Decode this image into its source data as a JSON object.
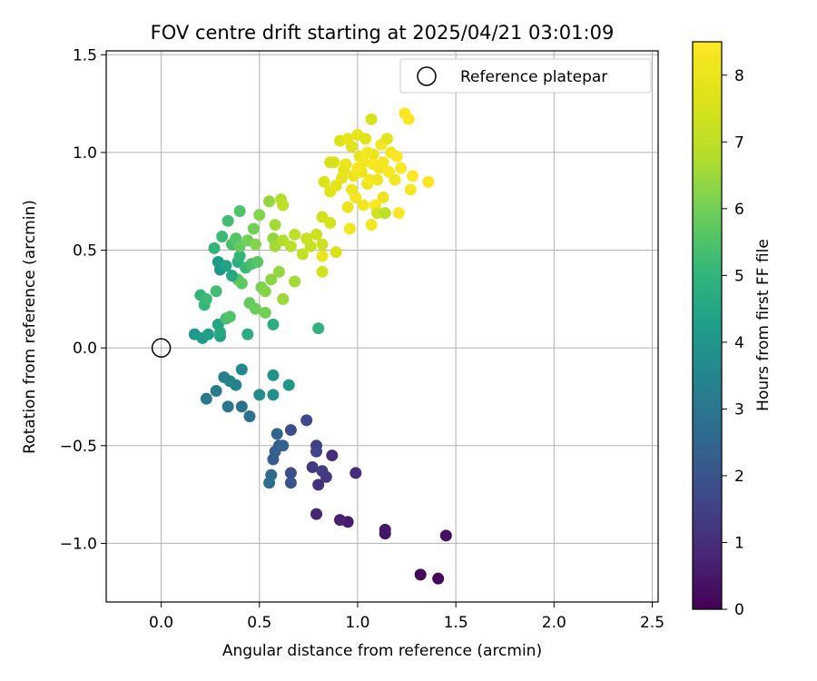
{
  "chart_data": {
    "type": "scatter",
    "title": "FOV centre drift starting at 2025/04/21 03:01:09",
    "xlabel": "Angular distance from reference (arcmin)",
    "ylabel": "Rotation from reference (arcmin)",
    "xlim": [
      -0.28,
      2.53
    ],
    "ylim": [
      -1.3,
      1.52
    ],
    "xticks": [
      0.0,
      0.5,
      1.0,
      1.5,
      2.0,
      2.5
    ],
    "xtick_labels": [
      "0.0",
      "0.5",
      "1.0",
      "1.5",
      "2.0",
      "2.5"
    ],
    "yticks": [
      -1.0,
      -0.5,
      0.0,
      0.5,
      1.0,
      1.5
    ],
    "ytick_labels": [
      "−1.0",
      "−0.5",
      "0.0",
      "0.5",
      "1.0",
      "1.5"
    ],
    "grid": true,
    "legend": {
      "placement": "top-right",
      "entries": [
        "Reference platepar"
      ]
    },
    "reference_point": {
      "x": 0.0,
      "y": 0.0
    },
    "colorbar": {
      "label": "Hours from first FF file",
      "colormap": "viridis",
      "range": [
        0,
        8.5
      ],
      "ticks": [
        0,
        1,
        2,
        3,
        4,
        5,
        6,
        7,
        8
      ],
      "tick_labels": [
        "0",
        "1",
        "2",
        "3",
        "4",
        "5",
        "6",
        "7",
        "8"
      ]
    },
    "points": [
      [
        1.41,
        -1.18,
        0.1
      ],
      [
        1.32,
        -1.16,
        0.2
      ],
      [
        1.45,
        -0.96,
        0.3
      ],
      [
        1.14,
        -0.95,
        0.4
      ],
      [
        1.14,
        -0.93,
        0.5
      ],
      [
        0.95,
        -0.89,
        0.6
      ],
      [
        0.91,
        -0.88,
        0.7
      ],
      [
        0.79,
        -0.85,
        0.8
      ],
      [
        0.99,
        -0.64,
        0.9
      ],
      [
        0.87,
        -0.55,
        1.0
      ],
      [
        0.8,
        -0.7,
        1.1
      ],
      [
        0.84,
        -0.66,
        1.2
      ],
      [
        0.77,
        -0.61,
        1.3
      ],
      [
        0.82,
        -0.63,
        1.4
      ],
      [
        0.79,
        -0.5,
        1.5
      ],
      [
        0.79,
        -0.53,
        1.6
      ],
      [
        0.74,
        -0.37,
        1.7
      ],
      [
        0.66,
        -0.42,
        1.8
      ],
      [
        0.66,
        -0.64,
        1.9
      ],
      [
        0.66,
        -0.69,
        2.0
      ],
      [
        0.6,
        -0.5,
        2.1
      ],
      [
        0.57,
        -0.57,
        2.2
      ],
      [
        0.58,
        -0.53,
        2.3
      ],
      [
        0.62,
        -0.5,
        2.4
      ],
      [
        0.59,
        -0.44,
        2.5
      ],
      [
        0.56,
        -0.65,
        2.6
      ],
      [
        0.55,
        -0.69,
        2.7
      ],
      [
        0.45,
        -0.35,
        2.8
      ],
      [
        0.41,
        -0.3,
        2.9
      ],
      [
        0.34,
        -0.3,
        3.0
      ],
      [
        0.23,
        -0.26,
        3.1
      ],
      [
        0.28,
        -0.22,
        3.2
      ],
      [
        0.32,
        -0.15,
        3.3
      ],
      [
        0.35,
        -0.17,
        3.4
      ],
      [
        0.38,
        -0.19,
        3.5
      ],
      [
        0.41,
        -0.11,
        3.6
      ],
      [
        0.5,
        -0.24,
        3.7
      ],
      [
        0.57,
        -0.24,
        3.8
      ],
      [
        0.57,
        -0.14,
        3.9
      ],
      [
        0.65,
        -0.19,
        4.0
      ],
      [
        0.17,
        0.07,
        4.1
      ],
      [
        0.21,
        0.05,
        4.2
      ],
      [
        0.24,
        0.07,
        4.3
      ],
      [
        0.3,
        0.06,
        4.4
      ],
      [
        0.29,
        0.12,
        4.5
      ],
      [
        0.3,
        0.08,
        4.6
      ],
      [
        0.44,
        0.07,
        4.7
      ],
      [
        0.57,
        0.12,
        4.8
      ],
      [
        0.8,
        0.1,
        4.9
      ],
      [
        0.2,
        0.27,
        5.0
      ],
      [
        0.22,
        0.22,
        5.1
      ],
      [
        0.23,
        0.25,
        5.2
      ],
      [
        0.28,
        0.29,
        5.3
      ],
      [
        0.33,
        0.15,
        5.4
      ],
      [
        0.35,
        0.16,
        5.5
      ],
      [
        0.39,
        0.35,
        5.6
      ],
      [
        0.41,
        0.33,
        5.7
      ],
      [
        0.45,
        0.23,
        5.8
      ],
      [
        0.48,
        0.2,
        5.9
      ],
      [
        0.53,
        0.18,
        6.0
      ],
      [
        0.51,
        0.31,
        6.1
      ],
      [
        0.53,
        0.29,
        6.2
      ],
      [
        0.56,
        0.35,
        6.3
      ],
      [
        0.6,
        0.39,
        6.4
      ],
      [
        0.62,
        0.25,
        6.5
      ],
      [
        0.68,
        0.34,
        6.6
      ],
      [
        0.3,
        0.4,
        4.0
      ],
      [
        0.29,
        0.44,
        4.2
      ],
      [
        0.33,
        0.42,
        4.4
      ],
      [
        0.36,
        0.37,
        4.6
      ],
      [
        0.39,
        0.44,
        4.8
      ],
      [
        0.4,
        0.47,
        5.0
      ],
      [
        0.43,
        0.41,
        5.2
      ],
      [
        0.46,
        0.43,
        5.4
      ],
      [
        0.49,
        0.44,
        5.6
      ],
      [
        0.27,
        0.51,
        5.0
      ],
      [
        0.31,
        0.57,
        5.2
      ],
      [
        0.36,
        0.53,
        5.4
      ],
      [
        0.38,
        0.56,
        5.6
      ],
      [
        0.4,
        0.52,
        5.8
      ],
      [
        0.44,
        0.55,
        6.0
      ],
      [
        0.48,
        0.53,
        6.2
      ],
      [
        0.57,
        0.56,
        6.4
      ],
      [
        0.58,
        0.52,
        6.6
      ],
      [
        0.62,
        0.55,
        6.8
      ],
      [
        0.34,
        0.65,
        5.3
      ],
      [
        0.4,
        0.7,
        5.5
      ],
      [
        0.47,
        0.61,
        6.0
      ],
      [
        0.5,
        0.68,
        6.2
      ],
      [
        0.55,
        0.75,
        6.4
      ],
      [
        0.58,
        0.63,
        6.6
      ],
      [
        0.61,
        0.76,
        6.8
      ],
      [
        0.62,
        0.73,
        7.0
      ],
      [
        0.66,
        0.52,
        6.9
      ],
      [
        0.68,
        0.58,
        7.0
      ],
      [
        0.72,
        0.48,
        7.1
      ],
      [
        0.74,
        0.56,
        7.2
      ],
      [
        0.76,
        0.52,
        7.2
      ],
      [
        0.79,
        0.58,
        7.3
      ],
      [
        0.82,
        0.53,
        7.3
      ],
      [
        0.82,
        0.39,
        7.4
      ],
      [
        0.82,
        0.67,
        7.4
      ],
      [
        0.86,
        0.64,
        7.5
      ],
      [
        0.89,
        0.49,
        7.5
      ],
      [
        0.82,
        0.47,
        8.0
      ],
      [
        0.83,
        0.85,
        7.6
      ],
      [
        0.86,
        0.8,
        7.7
      ],
      [
        0.88,
        0.95,
        7.7
      ],
      [
        0.89,
        0.83,
        7.8
      ],
      [
        0.91,
        1.06,
        7.6
      ],
      [
        0.93,
        0.91,
        7.8
      ],
      [
        0.94,
        0.94,
        8.0
      ],
      [
        0.95,
        0.72,
        8.1
      ],
      [
        0.95,
        1.07,
        7.9
      ],
      [
        0.96,
        0.61,
        8.2
      ],
      [
        0.97,
        1.03,
        7.8
      ],
      [
        0.98,
        0.88,
        8.0
      ],
      [
        0.99,
        0.77,
        8.2
      ],
      [
        1.0,
        1.09,
        7.9
      ],
      [
        1.01,
        0.98,
        8.0
      ],
      [
        1.02,
        0.9,
        8.1
      ],
      [
        1.03,
        0.73,
        8.2
      ],
      [
        1.04,
        1.07,
        7.7
      ],
      [
        1.05,
        0.84,
        8.1
      ],
      [
        1.06,
        0.86,
        8.3
      ],
      [
        1.07,
        0.63,
        8.3
      ],
      [
        1.07,
        1.17,
        7.5
      ],
      [
        1.08,
        0.99,
        8.0
      ],
      [
        1.09,
        0.73,
        8.4
      ],
      [
        1.1,
        0.69,
        7.4
      ],
      [
        1.11,
        0.92,
        8.2
      ],
      [
        1.12,
        1.04,
        8.3
      ],
      [
        1.13,
        0.77,
        8.1
      ],
      [
        1.14,
        0.69,
        7.0
      ],
      [
        1.15,
        1.07,
        7.8
      ],
      [
        1.16,
        0.9,
        8.4
      ],
      [
        1.17,
        1.0,
        8.3
      ],
      [
        1.19,
        0.86,
        8.2
      ],
      [
        1.2,
        0.98,
        8.4
      ],
      [
        1.21,
        0.69,
        8.5
      ],
      [
        1.22,
        0.92,
        8.4
      ],
      [
        1.24,
        1.2,
        8.5
      ],
      [
        1.26,
        1.17,
        8.5
      ],
      [
        1.27,
        0.81,
        8.3
      ],
      [
        1.28,
        0.88,
        8.5
      ],
      [
        1.36,
        0.85,
        8.4
      ],
      [
        0.86,
        0.95,
        7.5
      ],
      [
        0.92,
        0.87,
        7.9
      ],
      [
        0.97,
        0.81,
        8.1
      ],
      [
        1.03,
        0.95,
        8.2
      ],
      [
        1.0,
        0.92,
        8.3
      ],
      [
        1.08,
        0.94,
        8.4
      ],
      [
        1.13,
        0.95,
        8.3
      ],
      [
        1.05,
        1.0,
        8.2
      ],
      [
        1.1,
        0.86,
        8.1
      ]
    ]
  }
}
